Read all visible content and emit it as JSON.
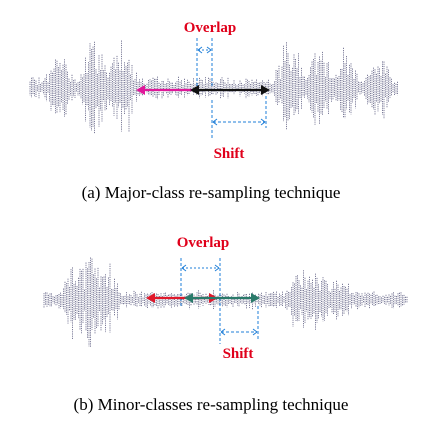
{
  "panels": [
    {
      "overlap_label": "Overlap",
      "shift_label": "Shift",
      "caption": "(a) Major-class re-sampling technique",
      "colors": {
        "label": "#e0001b",
        "wave": "#6f6f8f",
        "arrow_a": "#e0189a",
        "arrow_b": "#111111",
        "guide": "#1f7fd8"
      }
    },
    {
      "overlap_label": "Overlap",
      "shift_label": "Shift",
      "caption": "(b) Minor-classes re-sampling technique",
      "colors": {
        "label": "#e0001b",
        "wave": "#6f6f8f",
        "arrow_a": "#e0182a",
        "arrow_b": "#2a7a6a",
        "guide": "#1f7fd8"
      }
    }
  ]
}
